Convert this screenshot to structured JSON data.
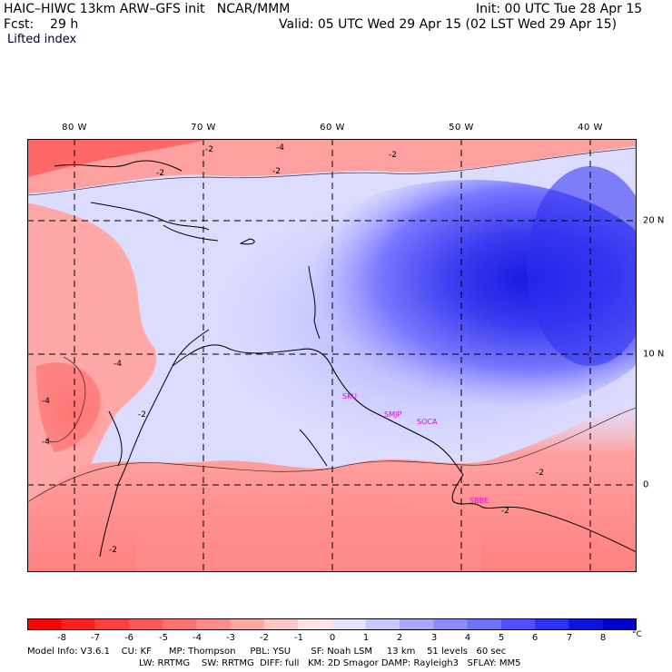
{
  "header": {
    "title": "HAIC–HIWC 13km ARW–GFS init   NCAR/MMM",
    "init": "Init: 00 UTC Tue 28 Apr 15",
    "fcst": "Fcst:    29 h",
    "valid": "Valid: 05 UTC Wed 29 Apr 15 (02 LST Wed 29 Apr 15)",
    "field": "Lifted index"
  },
  "axes": {
    "lon_labels": [
      "80 W",
      "70 W",
      "60 W",
      "50 W",
      "40 W"
    ],
    "lat_labels": [
      "20 N",
      "10 N",
      "0"
    ]
  },
  "stations": [
    "SKU",
    "SMJP",
    "SOCA",
    "SBBE"
  ],
  "contour_labels": {
    "minus2": "-2",
    "minus4": "-4"
  },
  "colorbar": {
    "ticks": [
      "-8",
      "-7",
      "-6",
      "-5",
      "-4",
      "-3",
      "-2",
      "-1",
      "0",
      "1",
      "2",
      "3",
      "4",
      "5",
      "6",
      "7",
      "8"
    ],
    "unit": "°C",
    "colors": [
      "#ff0000",
      "#ff2020",
      "#ff4040",
      "#ff5858",
      "#ff7070",
      "#ff8c8c",
      "#ffa8a8",
      "#ffc8c8",
      "#ffe4e4",
      "#e4e4ff",
      "#c8c8ff",
      "#a8a8ff",
      "#8c8cff",
      "#7070ff",
      "#5050ff",
      "#3030f0",
      "#1010e0",
      "#0000c8"
    ]
  },
  "footer": {
    "line1": "Model Info: V3.6.1    CU: KF      MP: Thompson     PBL: YSU       SF: Noah LSM     13 km    51 levels   60 sec",
    "line2": "LW: RRTMG    SW: RRTMG  DIFF: full   KM: 2D Smagor DAMP: Rayleigh3   SFLAY: MM5"
  }
}
